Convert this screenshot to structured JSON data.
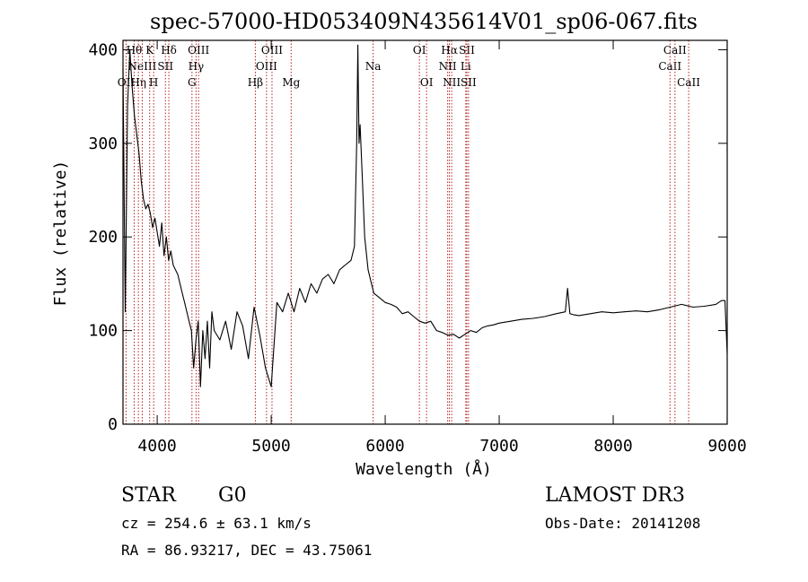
{
  "chart_data": {
    "type": "line",
    "title": "spec-57000-HD053409N435614V01_sp06-067.fits",
    "xlabel": "Wavelength (Å)",
    "ylabel": "Flux (relative)",
    "xlim": [
      3700,
      9000
    ],
    "ylim": [
      0,
      410
    ],
    "xticks": [
      4000,
      5000,
      6000,
      7000,
      8000,
      9000
    ],
    "yticks": [
      0,
      100,
      200,
      300,
      400
    ],
    "grid": false,
    "spectrum": {
      "x": [
        3700,
        3720,
        3740,
        3760,
        3780,
        3800,
        3820,
        3840,
        3860,
        3880,
        3900,
        3920,
        3940,
        3960,
        3980,
        4000,
        4020,
        4040,
        4060,
        4080,
        4100,
        4120,
        4140,
        4160,
        4180,
        4200,
        4220,
        4240,
        4260,
        4280,
        4300,
        4320,
        4340,
        4360,
        4380,
        4400,
        4420,
        4440,
        4460,
        4480,
        4500,
        4550,
        4600,
        4650,
        4700,
        4750,
        4800,
        4850,
        4900,
        4950,
        5000,
        5050,
        5100,
        5150,
        5200,
        5250,
        5300,
        5350,
        5400,
        5450,
        5500,
        5550,
        5600,
        5650,
        5700,
        5730,
        5750,
        5760,
        5770,
        5780,
        5800,
        5820,
        5850,
        5870,
        5900,
        5950,
        6000,
        6050,
        6100,
        6150,
        6200,
        6250,
        6300,
        6350,
        6400,
        6450,
        6500,
        6550,
        6600,
        6650,
        6700,
        6750,
        6800,
        6850,
        6900,
        6950,
        7000,
        7100,
        7200,
        7300,
        7400,
        7500,
        7580,
        7600,
        7620,
        7650,
        7700,
        7800,
        7900,
        8000,
        8100,
        8200,
        8300,
        8400,
        8500,
        8600,
        8700,
        8800,
        8900,
        8950,
        8980,
        9000
      ],
      "y": [
        380,
        120,
        340,
        400,
        360,
        330,
        310,
        290,
        260,
        240,
        230,
        235,
        225,
        210,
        220,
        205,
        190,
        215,
        180,
        200,
        175,
        185,
        170,
        165,
        160,
        150,
        140,
        130,
        120,
        110,
        100,
        60,
        90,
        110,
        40,
        100,
        70,
        110,
        60,
        120,
        100,
        90,
        110,
        80,
        120,
        105,
        70,
        125,
        95,
        60,
        40,
        130,
        120,
        140,
        120,
        145,
        130,
        150,
        140,
        155,
        160,
        150,
        165,
        170,
        175,
        190,
        300,
        405,
        300,
        320,
        260,
        200,
        165,
        155,
        140,
        135,
        130,
        128,
        125,
        118,
        120,
        115,
        110,
        108,
        110,
        100,
        98,
        95,
        96,
        92,
        96,
        100,
        98,
        103,
        105,
        106,
        108,
        110,
        112,
        113,
        115,
        118,
        120,
        145,
        118,
        117,
        116,
        118,
        120,
        119,
        120,
        121,
        120,
        122,
        125,
        128,
        125,
        126,
        128,
        132,
        132,
        75
      ]
    },
    "spectral_lines": [
      {
        "name": "OII",
        "wave": 3727,
        "row": 2
      },
      {
        "name": "Hθ",
        "wave": 3798,
        "row": 0
      },
      {
        "name": "Hη",
        "wave": 3835,
        "row": 2
      },
      {
        "name": "NeIII",
        "wave": 3869,
        "row": 1
      },
      {
        "name": "K",
        "wave": 3934,
        "row": 0
      },
      {
        "name": "H",
        "wave": 3969,
        "row": 2
      },
      {
        "name": "SII",
        "wave": 4072,
        "row": 1
      },
      {
        "name": "Hδ",
        "wave": 4102,
        "row": 0
      },
      {
        "name": "G",
        "wave": 4305,
        "row": 2
      },
      {
        "name": "Hγ",
        "wave": 4341,
        "row": 1
      },
      {
        "name": "OIII",
        "wave": 4363,
        "row": 0
      },
      {
        "name": "Hβ",
        "wave": 4861,
        "row": 2
      },
      {
        "name": "OIII",
        "wave": 4959,
        "row": 1
      },
      {
        "name": "OIII",
        "wave": 5007,
        "row": 0
      },
      {
        "name": "Mg",
        "wave": 5175,
        "row": 2
      },
      {
        "name": "Na",
        "wave": 5894,
        "row": 1
      },
      {
        "name": "OI",
        "wave": 6300,
        "row": 0
      },
      {
        "name": "OI",
        "wave": 6363,
        "row": 2
      },
      {
        "name": "NII",
        "wave": 6548,
        "row": 1
      },
      {
        "name": "Hα",
        "wave": 6563,
        "row": 0
      },
      {
        "name": "NII",
        "wave": 6583,
        "row": 2
      },
      {
        "name": "Li",
        "wave": 6707,
        "row": 1
      },
      {
        "name": "SII",
        "wave": 6716,
        "row": 0
      },
      {
        "name": "SII",
        "wave": 6731,
        "row": 2
      },
      {
        "name": "CaII",
        "wave": 8498,
        "row": 1
      },
      {
        "name": "CaII",
        "wave": 8542,
        "row": 0
      },
      {
        "name": "CaII",
        "wave": 8662,
        "row": 2
      }
    ],
    "colors": {
      "spectrum": "#000000",
      "lines": "#b22222"
    }
  },
  "info": {
    "class": "STAR",
    "subclass": "G0",
    "survey": "LAMOST DR3",
    "redshift": "cz = 254.6 ± 63.1 km/s",
    "obs_date": "Obs-Date: 20141208",
    "coords": "RA =  86.93217, DEC =  43.75061"
  }
}
